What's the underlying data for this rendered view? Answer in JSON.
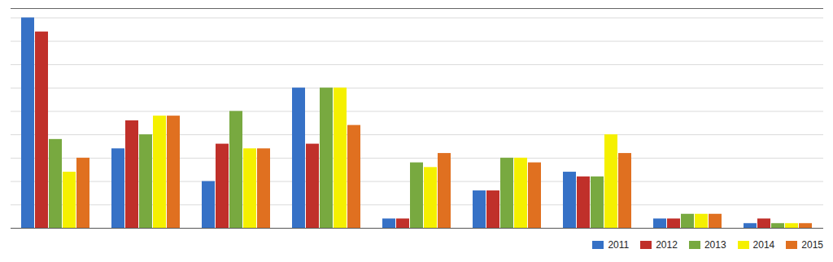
{
  "chart_data": {
    "type": "bar",
    "categories": [
      null,
      null,
      null,
      null,
      null,
      null,
      null,
      null,
      null
    ],
    "series": [
      {
        "name": "2011",
        "color": "#3671C6",
        "values": [
          45,
          17,
          10,
          30,
          2,
          8,
          12,
          2,
          1
        ]
      },
      {
        "name": "2012",
        "color": "#C0302A",
        "values": [
          42,
          23,
          18,
          18,
          2,
          8,
          11,
          2,
          2
        ]
      },
      {
        "name": "2013",
        "color": "#78A940",
        "values": [
          19,
          20,
          25,
          30,
          14,
          15,
          11,
          3,
          1
        ]
      },
      {
        "name": "2014",
        "color": "#F5F000",
        "values": [
          12,
          24,
          17,
          30,
          13,
          15,
          20,
          3,
          1
        ]
      },
      {
        "name": "2015",
        "color": "#E07020",
        "values": [
          15,
          24,
          17,
          22,
          16,
          14,
          16,
          3,
          1
        ]
      }
    ],
    "ylim": [
      0,
      47
    ],
    "yticks": [
      0,
      5,
      10,
      15,
      20,
      25,
      30,
      35,
      40,
      45
    ],
    "grid": true,
    "legend": "lower right",
    "tick_labels": false
  }
}
